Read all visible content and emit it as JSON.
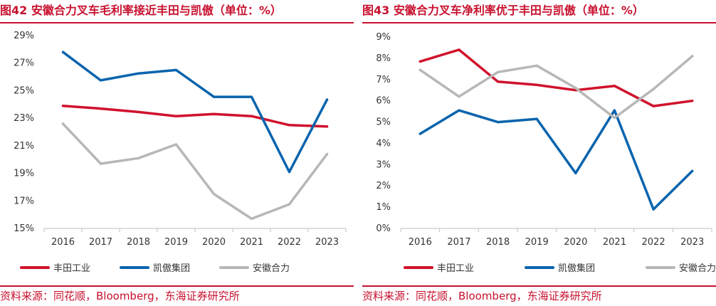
{
  "colors": {
    "accent": "#c8102e",
    "toyota": "#d0122c",
    "kion": "#0a64ad",
    "heli": "#b7b7b7",
    "axis": "#bfbfbf"
  },
  "panels": [
    {
      "title": "图42  安徽合力叉车毛利率接近丰田与凯傲（单位：%）",
      "source": "资料来源：同花顺，Bloomberg，东海证券研究所"
    },
    {
      "title": "图43  安徽合力叉车净利率优于丰田与凯傲（单位：%）",
      "source": "资料来源：同花顺，Bloomberg，东海证券研究所"
    }
  ],
  "chart_data": [
    {
      "type": "line",
      "categories": [
        "2016",
        "2017",
        "2018",
        "2019",
        "2020",
        "2021",
        "2022",
        "2023"
      ],
      "ylim": [
        15,
        29
      ],
      "yticks": [
        15,
        17,
        19,
        21,
        23,
        25,
        27,
        29
      ],
      "ytick_labels": [
        "15%",
        "17%",
        "19%",
        "21%",
        "23%",
        "25%",
        "27%",
        "29%"
      ],
      "grid": false,
      "legend_position": "bottom",
      "series": [
        {
          "name": "丰田工业",
          "color_key": "toyota",
          "values": [
            23.9,
            23.7,
            23.45,
            23.15,
            23.3,
            23.15,
            22.5,
            22.4
          ]
        },
        {
          "name": "凯傲集团",
          "color_key": "kion",
          "values": [
            27.8,
            25.75,
            26.25,
            26.5,
            24.55,
            24.55,
            19.1,
            24.35
          ]
        },
        {
          "name": "安徽合力",
          "color_key": "heli",
          "values": [
            22.6,
            19.7,
            20.1,
            21.1,
            17.5,
            15.7,
            16.75,
            20.4
          ]
        }
      ]
    },
    {
      "type": "line",
      "categories": [
        "2016",
        "2017",
        "2018",
        "2019",
        "2020",
        "2021",
        "2022",
        "2023"
      ],
      "ylim": [
        0,
        9
      ],
      "yticks": [
        0,
        1,
        2,
        3,
        4,
        5,
        6,
        7,
        8,
        9
      ],
      "ytick_labels": [
        "0%",
        "1%",
        "2%",
        "3%",
        "4%",
        "5%",
        "6%",
        "7%",
        "8%",
        "9%"
      ],
      "grid": false,
      "legend_position": "bottom",
      "series": [
        {
          "name": "丰田工业",
          "color_key": "toyota",
          "values": [
            7.85,
            8.4,
            6.9,
            6.75,
            6.5,
            6.7,
            5.75,
            6.0
          ]
        },
        {
          "name": "凯傲集团",
          "color_key": "kion",
          "values": [
            4.45,
            5.55,
            5.0,
            5.15,
            2.6,
            5.55,
            0.9,
            2.7
          ]
        },
        {
          "name": "安徽合力",
          "color_key": "heli",
          "values": [
            7.45,
            6.2,
            7.35,
            7.65,
            6.6,
            5.2,
            6.55,
            8.1
          ]
        }
      ]
    }
  ]
}
